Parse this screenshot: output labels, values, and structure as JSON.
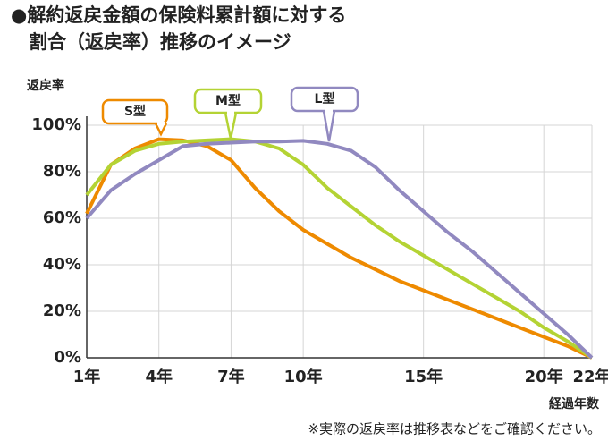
{
  "chart_data": {
    "type": "line",
    "title": [
      "●解約返戻金額の保険料累計額に対する",
      "割合（返戻率）推移のイメージ"
    ],
    "y_label": "返戻率",
    "x_label": "経過年数",
    "note": "※実際の返戻率は推移表などをご確認ください。",
    "x": [
      1,
      2,
      3,
      4,
      5,
      6,
      7,
      8,
      9,
      10,
      11,
      12,
      13,
      14,
      15,
      16,
      17,
      18,
      19,
      20,
      21,
      22
    ],
    "series": [
      {
        "name": "S型",
        "color": "#ee8a00",
        "values": [
          62,
          83,
          90,
          94,
          93.5,
          91,
          85,
          73,
          63,
          55,
          49,
          43,
          38,
          33,
          29,
          25,
          21,
          17,
          13,
          9,
          5,
          0
        ]
      },
      {
        "name": "M型",
        "color": "#b4d334",
        "values": [
          70,
          83,
          89,
          92,
          93,
          93.5,
          94,
          93,
          90,
          83,
          73,
          65,
          57,
          50,
          44,
          38,
          32,
          26,
          20,
          13,
          7,
          0
        ]
      },
      {
        "name": "L型",
        "color": "#9189c0",
        "values": [
          60,
          72,
          79,
          85,
          91,
          92,
          92.5,
          93,
          93,
          93.3,
          92,
          89,
          82,
          72,
          63,
          54,
          46,
          37,
          28,
          19,
          10,
          0
        ]
      }
    ],
    "xlim": [
      1,
      22
    ],
    "ylim": [
      0,
      100
    ],
    "xticks": [
      {
        "value": 1,
        "label": "1年"
      },
      {
        "value": 4,
        "label": "4年"
      },
      {
        "value": 7,
        "label": "7年"
      },
      {
        "value": 10,
        "label": "10年"
      },
      {
        "value": 15,
        "label": "15年"
      },
      {
        "value": 20,
        "label": "20年"
      },
      {
        "value": 22,
        "label": "22年"
      }
    ],
    "yticks": [
      {
        "value": 0,
        "label": "0%"
      },
      {
        "value": 20,
        "label": "20%"
      },
      {
        "value": 40,
        "label": "40%"
      },
      {
        "value": 60,
        "label": "60%"
      },
      {
        "value": 80,
        "label": "80%"
      },
      {
        "value": 100,
        "label": "100%"
      }
    ],
    "grid": true
  }
}
